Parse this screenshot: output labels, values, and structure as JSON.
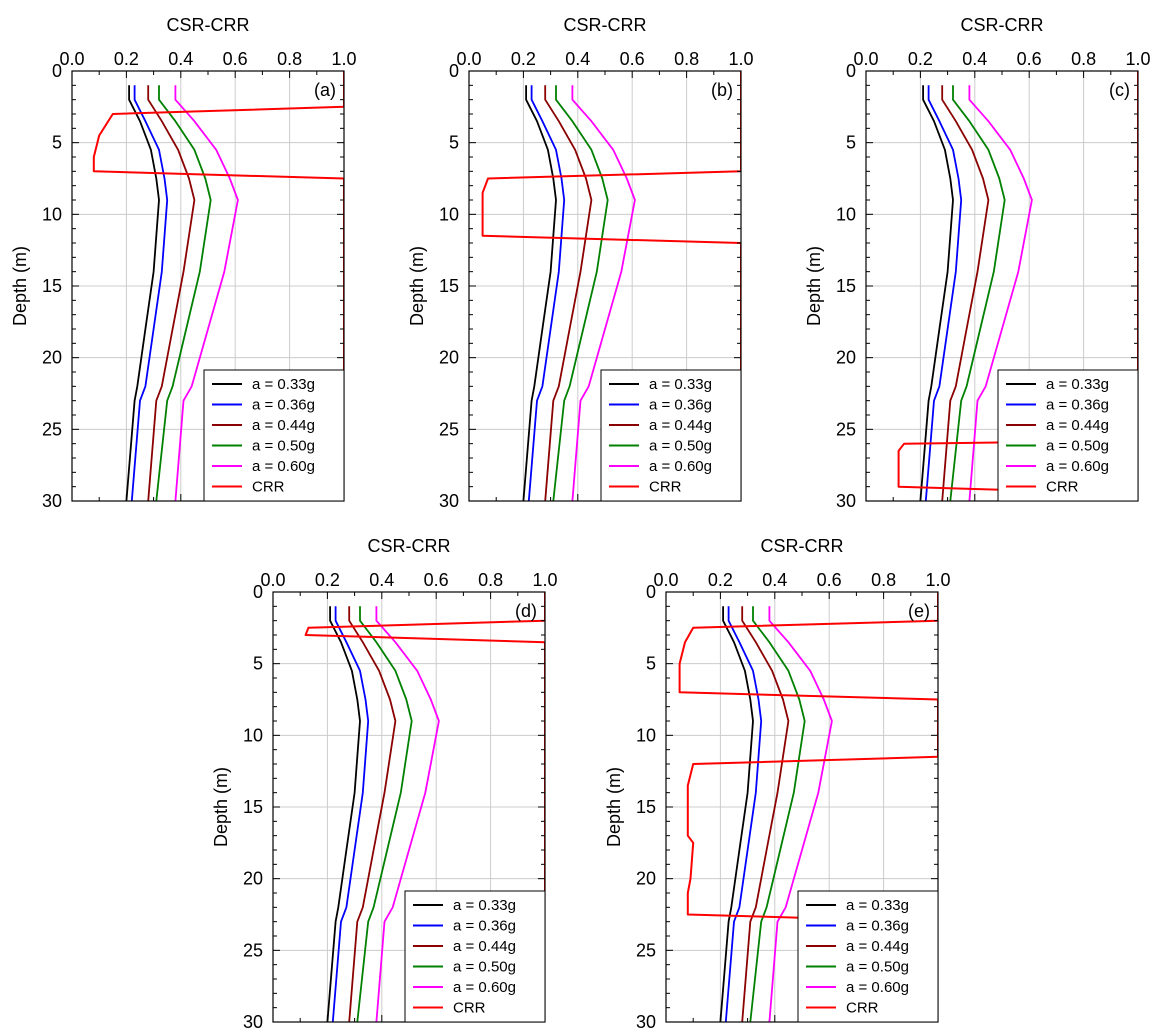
{
  "chart_data": [
    {
      "type": "line",
      "panel_label": "(a)",
      "title": "CSR-CRR",
      "xlabel": "",
      "ylabel": "Depth (m)",
      "xlim": [
        0,
        1
      ],
      "ylim": [
        0,
        30
      ],
      "y_axis_inverted": true,
      "x_axis_position": "top",
      "grid": true,
      "legend_position": "bottom-right",
      "x_ticks": [
        "0.0",
        "0.2",
        "0.4",
        "0.6",
        "0.8",
        "1.0"
      ],
      "y_ticks": [
        "0",
        "5",
        "10",
        "15",
        "20",
        "25",
        "30"
      ],
      "series": [
        {
          "name": "a = 0.33g",
          "color": "#000000",
          "x": [
            0.21,
            0.21,
            0.25,
            0.29,
            0.31,
            0.32,
            0.3,
            0.27,
            0.24,
            0.23,
            0.2
          ],
          "y": [
            1.0,
            2.0,
            3.5,
            5.5,
            7.5,
            9.0,
            14.0,
            18.0,
            22.0,
            23.0,
            30.0
          ]
        },
        {
          "name": "a = 0.36g",
          "color": "#0000FF",
          "x": [
            0.23,
            0.23,
            0.27,
            0.32,
            0.34,
            0.35,
            0.33,
            0.3,
            0.27,
            0.25,
            0.22
          ],
          "y": [
            1.0,
            2.0,
            3.5,
            5.5,
            7.5,
            9.0,
            14.0,
            18.0,
            22.0,
            23.0,
            30.0
          ]
        },
        {
          "name": "a = 0.44g",
          "color": "#8B0000",
          "x": [
            0.28,
            0.28,
            0.33,
            0.39,
            0.43,
            0.45,
            0.41,
            0.37,
            0.33,
            0.31,
            0.28
          ],
          "y": [
            1.0,
            2.0,
            3.5,
            5.5,
            7.5,
            9.0,
            14.0,
            18.0,
            22.0,
            23.0,
            30.0
          ]
        },
        {
          "name": "a = 0.50g",
          "color": "#008000",
          "x": [
            0.32,
            0.32,
            0.38,
            0.45,
            0.49,
            0.51,
            0.47,
            0.42,
            0.37,
            0.35,
            0.31
          ],
          "y": [
            1.0,
            2.0,
            3.5,
            5.5,
            7.5,
            9.0,
            14.0,
            18.0,
            22.0,
            23.0,
            30.0
          ]
        },
        {
          "name": "a = 0.60g",
          "color": "#FF00FF",
          "x": [
            0.38,
            0.38,
            0.45,
            0.53,
            0.58,
            0.61,
            0.56,
            0.5,
            0.44,
            0.41,
            0.38
          ],
          "y": [
            1.0,
            2.0,
            3.5,
            5.5,
            7.5,
            9.0,
            14.0,
            18.0,
            22.0,
            23.0,
            30.0
          ]
        },
        {
          "name": "CRR",
          "color": "#FF0000",
          "x": [
            1.0,
            1.0,
            0.15,
            0.1,
            0.08,
            0.08,
            1.0,
            1.0
          ],
          "y": [
            0.0,
            2.5,
            3.0,
            4.5,
            6.0,
            7.0,
            7.5,
            30.0
          ]
        }
      ]
    },
    {
      "type": "line",
      "panel_label": "(b)",
      "title": "CSR-CRR",
      "xlabel": "",
      "ylabel": "Depth (m)",
      "xlim": [
        0,
        1
      ],
      "ylim": [
        0,
        30
      ],
      "y_axis_inverted": true,
      "x_axis_position": "top",
      "grid": true,
      "legend_position": "bottom-right",
      "x_ticks": [
        "0.0",
        "0.2",
        "0.4",
        "0.6",
        "0.8",
        "1.0"
      ],
      "y_ticks": [
        "0",
        "5",
        "10",
        "15",
        "20",
        "25",
        "30"
      ],
      "series": [
        {
          "name": "a = 0.33g",
          "color": "#000000",
          "x": [
            0.21,
            0.21,
            0.25,
            0.29,
            0.31,
            0.32,
            0.3,
            0.27,
            0.24,
            0.23,
            0.2
          ],
          "y": [
            1.0,
            2.0,
            3.5,
            5.5,
            7.5,
            9.0,
            14.0,
            18.0,
            22.0,
            23.0,
            30.0
          ]
        },
        {
          "name": "a = 0.36g",
          "color": "#0000FF",
          "x": [
            0.23,
            0.23,
            0.27,
            0.32,
            0.34,
            0.35,
            0.33,
            0.3,
            0.27,
            0.25,
            0.22
          ],
          "y": [
            1.0,
            2.0,
            3.5,
            5.5,
            7.5,
            9.0,
            14.0,
            18.0,
            22.0,
            23.0,
            30.0
          ]
        },
        {
          "name": "a = 0.44g",
          "color": "#8B0000",
          "x": [
            0.28,
            0.28,
            0.33,
            0.39,
            0.43,
            0.45,
            0.41,
            0.37,
            0.33,
            0.31,
            0.28
          ],
          "y": [
            1.0,
            2.0,
            3.5,
            5.5,
            7.5,
            9.0,
            14.0,
            18.0,
            22.0,
            23.0,
            30.0
          ]
        },
        {
          "name": "a = 0.50g",
          "color": "#008000",
          "x": [
            0.32,
            0.32,
            0.38,
            0.45,
            0.49,
            0.51,
            0.47,
            0.42,
            0.37,
            0.35,
            0.31
          ],
          "y": [
            1.0,
            2.0,
            3.5,
            5.5,
            7.5,
            9.0,
            14.0,
            18.0,
            22.0,
            23.0,
            30.0
          ]
        },
        {
          "name": "a = 0.60g",
          "color": "#FF00FF",
          "x": [
            0.38,
            0.38,
            0.45,
            0.53,
            0.58,
            0.61,
            0.56,
            0.5,
            0.44,
            0.41,
            0.38
          ],
          "y": [
            1.0,
            2.0,
            3.5,
            5.5,
            7.5,
            9.0,
            14.0,
            18.0,
            22.0,
            23.0,
            30.0
          ]
        },
        {
          "name": "CRR",
          "color": "#FF0000",
          "x": [
            1.0,
            1.0,
            0.07,
            0.05,
            0.05,
            1.0,
            1.0
          ],
          "y": [
            0.0,
            7.0,
            7.5,
            8.5,
            11.5,
            12.0,
            30.0
          ]
        }
      ]
    },
    {
      "type": "line",
      "panel_label": "(c)",
      "title": "CSR-CRR",
      "xlabel": "",
      "ylabel": "Depth (m)",
      "xlim": [
        0,
        1
      ],
      "ylim": [
        0,
        30
      ],
      "y_axis_inverted": true,
      "x_axis_position": "top",
      "grid": true,
      "legend_position": "bottom-right",
      "x_ticks": [
        "0.0",
        "0.2",
        "0.4",
        "0.6",
        "0.8",
        "1.0"
      ],
      "y_ticks": [
        "0",
        "5",
        "10",
        "15",
        "20",
        "25",
        "30"
      ],
      "series": [
        {
          "name": "a = 0.33g",
          "color": "#000000",
          "x": [
            0.21,
            0.21,
            0.25,
            0.29,
            0.31,
            0.32,
            0.3,
            0.27,
            0.24,
            0.23,
            0.2
          ],
          "y": [
            1.0,
            2.0,
            3.5,
            5.5,
            7.5,
            9.0,
            14.0,
            18.0,
            22.0,
            23.0,
            30.0
          ]
        },
        {
          "name": "a = 0.36g",
          "color": "#0000FF",
          "x": [
            0.23,
            0.23,
            0.27,
            0.32,
            0.34,
            0.35,
            0.33,
            0.3,
            0.27,
            0.25,
            0.22
          ],
          "y": [
            1.0,
            2.0,
            3.5,
            5.5,
            7.5,
            9.0,
            14.0,
            18.0,
            22.0,
            23.0,
            30.0
          ]
        },
        {
          "name": "a = 0.44g",
          "color": "#8B0000",
          "x": [
            0.28,
            0.28,
            0.33,
            0.39,
            0.43,
            0.45,
            0.41,
            0.37,
            0.33,
            0.31,
            0.28
          ],
          "y": [
            1.0,
            2.0,
            3.5,
            5.5,
            7.5,
            9.0,
            14.0,
            18.0,
            22.0,
            23.0,
            30.0
          ]
        },
        {
          "name": "a = 0.50g",
          "color": "#008000",
          "x": [
            0.32,
            0.32,
            0.38,
            0.45,
            0.49,
            0.51,
            0.47,
            0.42,
            0.37,
            0.35,
            0.31
          ],
          "y": [
            1.0,
            2.0,
            3.5,
            5.5,
            7.5,
            9.0,
            14.0,
            18.0,
            22.0,
            23.0,
            30.0
          ]
        },
        {
          "name": "a = 0.60g",
          "color": "#FF00FF",
          "x": [
            0.38,
            0.38,
            0.45,
            0.53,
            0.58,
            0.61,
            0.56,
            0.5,
            0.44,
            0.41,
            0.38
          ],
          "y": [
            1.0,
            2.0,
            3.5,
            5.5,
            7.5,
            9.0,
            14.0,
            18.0,
            22.0,
            23.0,
            30.0
          ]
        },
        {
          "name": "CRR",
          "color": "#FF0000",
          "x": [
            1.0,
            1.0,
            0.14,
            0.12,
            0.12,
            1.0,
            1.0
          ],
          "y": [
            0.0,
            25.8,
            26.0,
            26.5,
            29.0,
            29.5,
            30.0
          ]
        }
      ]
    },
    {
      "type": "line",
      "panel_label": "(d)",
      "title": "CSR-CRR",
      "xlabel": "",
      "ylabel": "Depth (m)",
      "xlim": [
        0,
        1
      ],
      "ylim": [
        0,
        30
      ],
      "y_axis_inverted": true,
      "x_axis_position": "top",
      "grid": true,
      "legend_position": "bottom-right",
      "x_ticks": [
        "0.0",
        "0.2",
        "0.4",
        "0.6",
        "0.8",
        "1.0"
      ],
      "y_ticks": [
        "0",
        "5",
        "10",
        "15",
        "20",
        "25",
        "30"
      ],
      "series": [
        {
          "name": "a = 0.33g",
          "color": "#000000",
          "x": [
            0.21,
            0.21,
            0.25,
            0.29,
            0.31,
            0.32,
            0.3,
            0.27,
            0.24,
            0.23,
            0.2
          ],
          "y": [
            1.0,
            2.0,
            3.5,
            5.5,
            7.5,
            9.0,
            14.0,
            18.0,
            22.0,
            23.0,
            30.0
          ]
        },
        {
          "name": "a = 0.36g",
          "color": "#0000FF",
          "x": [
            0.23,
            0.23,
            0.27,
            0.32,
            0.34,
            0.35,
            0.33,
            0.3,
            0.27,
            0.25,
            0.22
          ],
          "y": [
            1.0,
            2.0,
            3.5,
            5.5,
            7.5,
            9.0,
            14.0,
            18.0,
            22.0,
            23.0,
            30.0
          ]
        },
        {
          "name": "a = 0.44g",
          "color": "#8B0000",
          "x": [
            0.28,
            0.28,
            0.33,
            0.39,
            0.43,
            0.45,
            0.41,
            0.37,
            0.33,
            0.31,
            0.28
          ],
          "y": [
            1.0,
            2.0,
            3.5,
            5.5,
            7.5,
            9.0,
            14.0,
            18.0,
            22.0,
            23.0,
            30.0
          ]
        },
        {
          "name": "a = 0.50g",
          "color": "#008000",
          "x": [
            0.32,
            0.32,
            0.38,
            0.45,
            0.49,
            0.51,
            0.47,
            0.42,
            0.37,
            0.35,
            0.31
          ],
          "y": [
            1.0,
            2.0,
            3.5,
            5.5,
            7.5,
            9.0,
            14.0,
            18.0,
            22.0,
            23.0,
            30.0
          ]
        },
        {
          "name": "a = 0.60g",
          "color": "#FF00FF",
          "x": [
            0.38,
            0.38,
            0.45,
            0.53,
            0.58,
            0.61,
            0.56,
            0.5,
            0.44,
            0.41,
            0.38
          ],
          "y": [
            1.0,
            2.0,
            3.5,
            5.5,
            7.5,
            9.0,
            14.0,
            18.0,
            22.0,
            23.0,
            30.0
          ]
        },
        {
          "name": "CRR",
          "color": "#FF0000",
          "x": [
            1.0,
            1.0,
            0.13,
            0.12,
            1.0,
            1.0
          ],
          "y": [
            0.0,
            2.0,
            2.5,
            3.0,
            3.5,
            30.0
          ]
        }
      ]
    },
    {
      "type": "line",
      "panel_label": "(e)",
      "title": "CSR-CRR",
      "xlabel": "",
      "ylabel": "Depth (m)",
      "xlim": [
        0,
        1
      ],
      "ylim": [
        0,
        30
      ],
      "y_axis_inverted": true,
      "x_axis_position": "top",
      "grid": true,
      "legend_position": "bottom-right",
      "x_ticks": [
        "0.0",
        "0.2",
        "0.4",
        "0.6",
        "0.8",
        "1.0"
      ],
      "y_ticks": [
        "0",
        "5",
        "10",
        "15",
        "20",
        "25",
        "30"
      ],
      "series": [
        {
          "name": "a = 0.33g",
          "color": "#000000",
          "x": [
            0.21,
            0.21,
            0.25,
            0.29,
            0.31,
            0.32,
            0.3,
            0.27,
            0.24,
            0.23,
            0.2
          ],
          "y": [
            1.0,
            2.0,
            3.5,
            5.5,
            7.5,
            9.0,
            14.0,
            18.0,
            22.0,
            23.0,
            30.0
          ]
        },
        {
          "name": "a = 0.36g",
          "color": "#0000FF",
          "x": [
            0.23,
            0.23,
            0.27,
            0.32,
            0.34,
            0.35,
            0.33,
            0.3,
            0.27,
            0.25,
            0.22
          ],
          "y": [
            1.0,
            2.0,
            3.5,
            5.5,
            7.5,
            9.0,
            14.0,
            18.0,
            22.0,
            23.0,
            30.0
          ]
        },
        {
          "name": "a = 0.44g",
          "color": "#8B0000",
          "x": [
            0.28,
            0.28,
            0.33,
            0.39,
            0.43,
            0.45,
            0.41,
            0.37,
            0.33,
            0.31,
            0.28
          ],
          "y": [
            1.0,
            2.0,
            3.5,
            5.5,
            7.5,
            9.0,
            14.0,
            18.0,
            22.0,
            23.0,
            30.0
          ]
        },
        {
          "name": "a = 0.50g",
          "color": "#008000",
          "x": [
            0.32,
            0.32,
            0.38,
            0.45,
            0.49,
            0.51,
            0.47,
            0.42,
            0.37,
            0.35,
            0.31
          ],
          "y": [
            1.0,
            2.0,
            3.5,
            5.5,
            7.5,
            9.0,
            14.0,
            18.0,
            22.0,
            23.0,
            30.0
          ]
        },
        {
          "name": "a = 0.60g",
          "color": "#FF00FF",
          "x": [
            0.38,
            0.38,
            0.45,
            0.53,
            0.58,
            0.61,
            0.56,
            0.5,
            0.44,
            0.41,
            0.38
          ],
          "y": [
            1.0,
            2.0,
            3.5,
            5.5,
            7.5,
            9.0,
            14.0,
            18.0,
            22.0,
            23.0,
            30.0
          ]
        },
        {
          "name": "CRR",
          "color": "#FF0000",
          "x": [
            1.0,
            1.0,
            0.1,
            0.07,
            0.05,
            0.05,
            1.0,
            1.0,
            0.1,
            0.08,
            0.08,
            0.1,
            0.09,
            0.08,
            0.08,
            1.0,
            1.0
          ],
          "y": [
            0.0,
            2.0,
            2.5,
            3.5,
            5.0,
            7.0,
            7.5,
            11.5,
            12.0,
            13.5,
            17.0,
            17.5,
            20.0,
            21.0,
            22.5,
            23.0,
            30.0
          ]
        }
      ]
    }
  ]
}
